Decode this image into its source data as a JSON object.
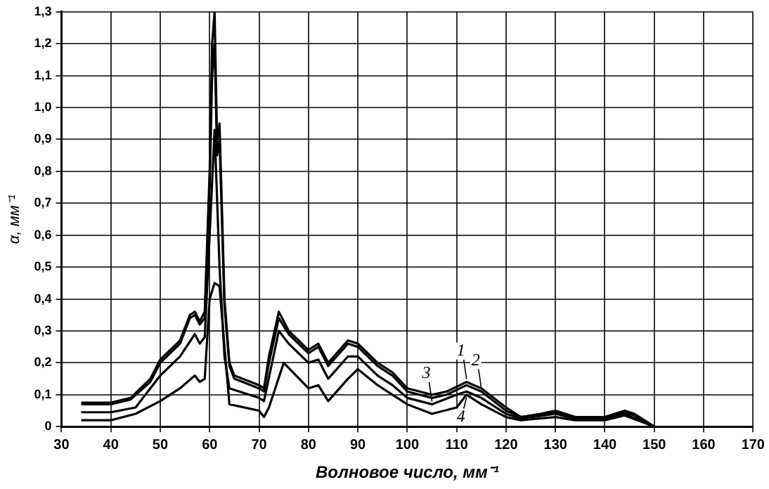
{
  "chart_data": {
    "type": "line",
    "xlabel": "Волновое число, мм⁻¹",
    "ylabel": "α, мм⁻¹",
    "xlim": [
      30,
      170
    ],
    "xticks": [
      30,
      40,
      50,
      60,
      70,
      80,
      90,
      100,
      110,
      120,
      130,
      140,
      150,
      160,
      170
    ],
    "ylim": [
      0,
      1.3
    ],
    "yticks": [
      0,
      {
        "value": 0.1,
        "label": "0,1"
      },
      {
        "value": 0.2,
        "label": "0,2"
      },
      {
        "value": 0.3,
        "label": "0,3"
      },
      {
        "value": 0.4,
        "label": "0,4"
      },
      {
        "value": 0.5,
        "label": "0,5"
      },
      {
        "value": 0.6,
        "label": "0,6"
      },
      {
        "value": 0.7,
        "label": "0,7"
      },
      {
        "value": 0.8,
        "label": "0,8"
      },
      {
        "value": 0.9,
        "label": "0,9"
      },
      {
        "value": 1.0,
        "label": "1,0"
      },
      {
        "value": 1.1,
        "label": "1,1"
      },
      {
        "value": 1.2,
        "label": "1,2"
      },
      {
        "value": 1.3,
        "label": "1,3"
      }
    ],
    "grid": true,
    "legend": false,
    "marker": "none",
    "line_style": "solid",
    "series": [
      {
        "color": "#000000",
        "x": [
          34,
          40,
          44,
          48,
          50,
          54,
          56,
          57,
          58,
          59,
          60,
          60.5,
          61,
          61.5,
          62,
          63,
          64,
          65,
          70,
          71,
          72,
          74,
          76,
          80,
          82,
          84,
          88,
          90,
          94,
          97,
          100,
          105,
          108,
          112,
          115,
          120,
          123,
          127,
          130,
          134,
          140,
          144,
          146,
          150
        ],
        "values": [
          0.075,
          0.075,
          0.09,
          0.15,
          0.21,
          0.27,
          0.35,
          0.36,
          0.33,
          0.36,
          0.8,
          1.2,
          1.3,
          0.9,
          0.95,
          0.4,
          0.2,
          0.16,
          0.13,
          0.12,
          0.22,
          0.36,
          0.3,
          0.24,
          0.26,
          0.2,
          0.27,
          0.26,
          0.2,
          0.17,
          0.12,
          0.1,
          0.11,
          0.14,
          0.12,
          0.06,
          0.03,
          0.04,
          0.05,
          0.03,
          0.03,
          0.05,
          0.04,
          0
        ]
      },
      {
        "color": "#000000",
        "x": [
          34,
          40,
          44,
          48,
          50,
          54,
          56,
          57,
          58,
          59,
          60,
          60.5,
          61,
          61.5,
          62,
          63,
          64,
          65,
          70,
          71,
          72,
          74,
          76,
          80,
          82,
          84,
          88,
          90,
          94,
          97,
          100,
          105,
          108,
          112,
          115,
          120,
          123,
          127,
          130,
          134,
          140,
          144,
          146,
          150
        ],
        "values": [
          0.07,
          0.07,
          0.085,
          0.14,
          0.2,
          0.26,
          0.34,
          0.35,
          0.32,
          0.34,
          0.75,
          1.1,
          1.2,
          0.85,
          0.9,
          0.38,
          0.19,
          0.15,
          0.12,
          0.11,
          0.2,
          0.34,
          0.29,
          0.23,
          0.25,
          0.19,
          0.26,
          0.25,
          0.19,
          0.16,
          0.11,
          0.09,
          0.1,
          0.13,
          0.11,
          0.05,
          0.03,
          0.035,
          0.045,
          0.03,
          0.03,
          0.045,
          0.035,
          0
        ]
      },
      {
        "color": "#000000",
        "x": [
          34,
          40,
          45,
          50,
          54,
          57,
          58,
          59,
          60,
          61,
          62,
          63,
          64,
          70,
          71,
          74,
          76,
          80,
          82,
          84,
          88,
          90,
          94,
          97,
          100,
          105,
          110,
          112,
          115,
          120,
          123,
          130,
          134,
          140,
          144,
          150
        ],
        "values": [
          0.045,
          0.045,
          0.06,
          0.16,
          0.22,
          0.29,
          0.26,
          0.28,
          0.6,
          0.93,
          0.5,
          0.22,
          0.12,
          0.09,
          0.08,
          0.3,
          0.26,
          0.2,
          0.21,
          0.15,
          0.22,
          0.22,
          0.16,
          0.13,
          0.09,
          0.07,
          0.1,
          0.11,
          0.09,
          0.04,
          0.025,
          0.04,
          0.025,
          0.025,
          0.04,
          0
        ]
      },
      {
        "color": "#000000",
        "x": [
          34,
          40,
          45,
          50,
          54,
          57,
          58,
          59,
          60,
          61,
          62,
          63,
          64,
          70,
          71,
          72,
          75,
          80,
          82,
          84,
          88,
          90,
          94,
          97,
          100,
          105,
          110,
          112,
          115,
          120,
          123,
          130,
          134,
          140,
          144,
          150
        ],
        "values": [
          0.02,
          0.02,
          0.04,
          0.08,
          0.12,
          0.16,
          0.14,
          0.15,
          0.4,
          0.45,
          0.44,
          0.25,
          0.07,
          0.05,
          0.03,
          0.06,
          0.2,
          0.12,
          0.13,
          0.08,
          0.15,
          0.18,
          0.13,
          0.1,
          0.07,
          0.04,
          0.06,
          0.1,
          0.07,
          0.03,
          0.02,
          0.03,
          0.02,
          0.02,
          0.035,
          0
        ]
      }
    ],
    "annotations": [
      {
        "text": "1",
        "x": 112,
        "y": 0.14
      },
      {
        "text": "2",
        "x": 115,
        "y": 0.11
      },
      {
        "text": "3",
        "x": 105,
        "y": 0.07
      },
      {
        "text": "4",
        "x": 112,
        "y": 0.1
      }
    ]
  }
}
